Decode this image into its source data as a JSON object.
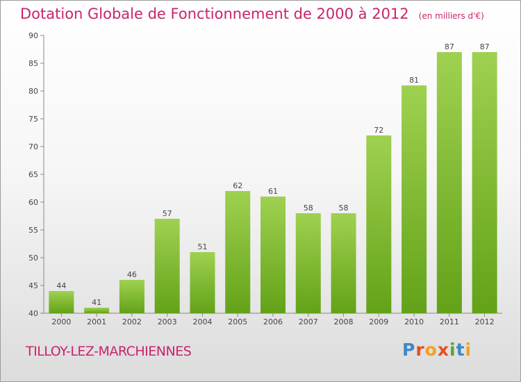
{
  "header": {
    "title": "Dotation Globale de Fonctionnement de 2000 à 2012",
    "unit": "(en milliers d'€)"
  },
  "footer": {
    "commune": "TILLOY-LEZ-MARCHIENNES",
    "logo": "Proxiti"
  },
  "colors": {
    "title": "#c8246c",
    "bar_top": "#9fd150",
    "bar_bottom": "#63a218",
    "logo_letters": [
      "#3c88c8",
      "#e74d22",
      "#f2a11f",
      "#e74d22",
      "#5aa62b",
      "#3c88c8",
      "#f2a11f"
    ]
  },
  "chart_data": {
    "type": "bar",
    "categories": [
      "2000",
      "2001",
      "2002",
      "2003",
      "2004",
      "2005",
      "2006",
      "2007",
      "2008",
      "2009",
      "2010",
      "2011",
      "2012"
    ],
    "values": [
      44,
      41,
      46,
      57,
      51,
      62,
      61,
      58,
      58,
      72,
      81,
      87,
      87
    ],
    "ylim": [
      40,
      90
    ],
    "yticks": [
      40,
      45,
      50,
      55,
      60,
      65,
      70,
      75,
      80,
      85,
      90
    ],
    "grid": false,
    "legend": "none"
  }
}
